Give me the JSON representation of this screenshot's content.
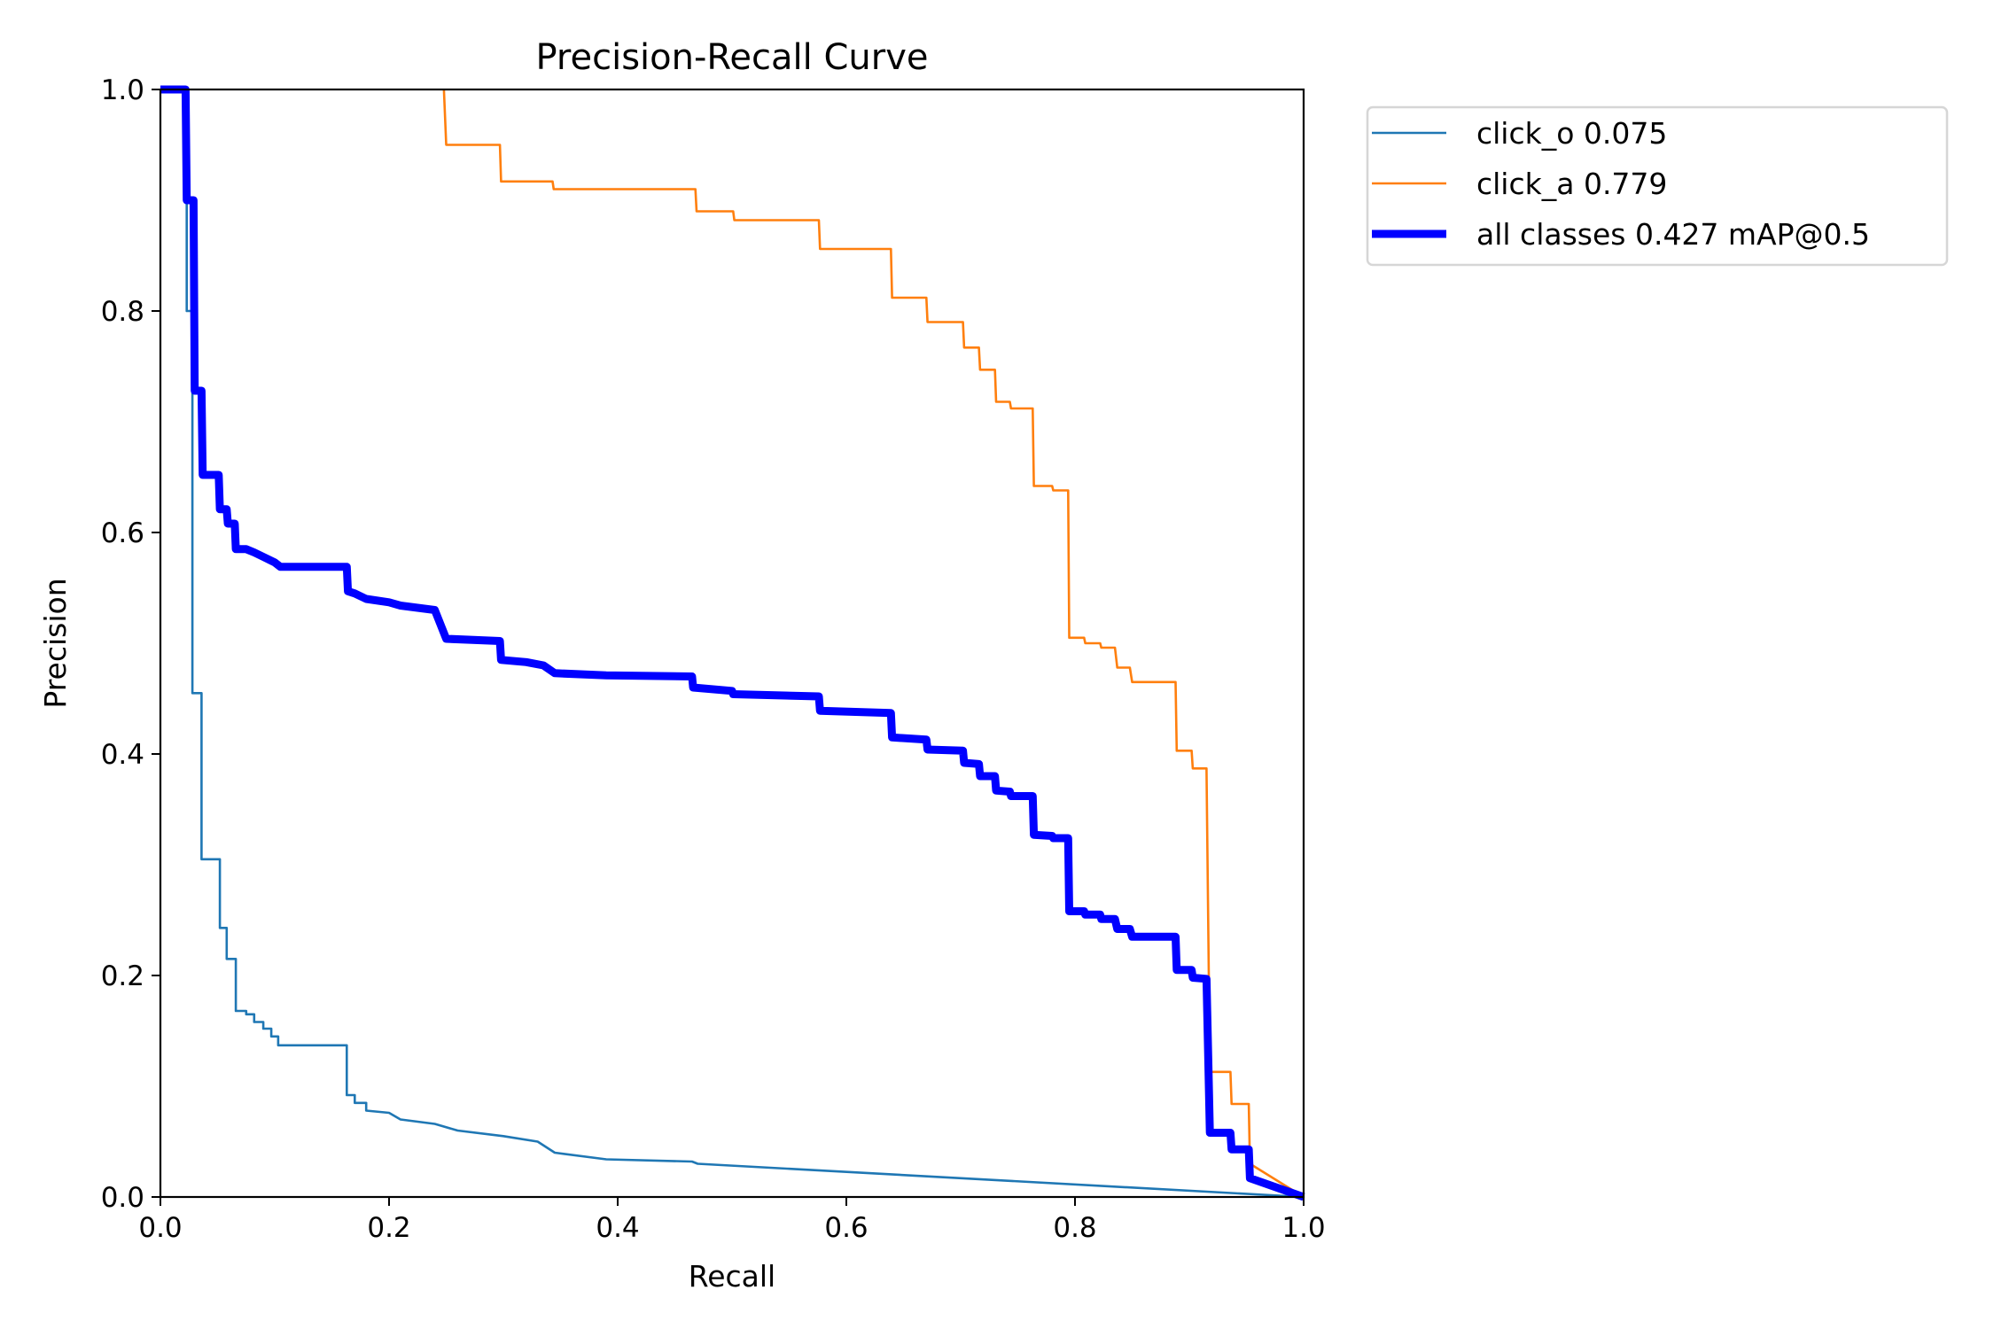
{
  "chart_data": {
    "type": "line",
    "title": "Precision-Recall Curve",
    "xlabel": "Recall",
    "ylabel": "Precision",
    "xlim": [
      0,
      1
    ],
    "ylim": [
      0,
      1
    ],
    "xticks": [
      "0.0",
      "0.2",
      "0.4",
      "0.6",
      "0.8",
      "1.0"
    ],
    "yticks": [
      "0.0",
      "0.2",
      "0.4",
      "0.6",
      "0.8",
      "1.0"
    ],
    "grid": false,
    "legend_position": "outside-top-right",
    "series": [
      {
        "name": "click_o 0.075",
        "color": "#1f77b4",
        "width": "thin",
        "points": [
          [
            0,
            1.0
          ],
          [
            0.023,
            1.0
          ],
          [
            0.023,
            0.8
          ],
          [
            0.028,
            0.8
          ],
          [
            0.028,
            0.455
          ],
          [
            0.036,
            0.455
          ],
          [
            0.036,
            0.305
          ],
          [
            0.052,
            0.305
          ],
          [
            0.052,
            0.243
          ],
          [
            0.058,
            0.243
          ],
          [
            0.058,
            0.215
          ],
          [
            0.066,
            0.215
          ],
          [
            0.066,
            0.168
          ],
          [
            0.075,
            0.168
          ],
          [
            0.075,
            0.165
          ],
          [
            0.082,
            0.165
          ],
          [
            0.082,
            0.158
          ],
          [
            0.09,
            0.158
          ],
          [
            0.09,
            0.152
          ],
          [
            0.097,
            0.152
          ],
          [
            0.097,
            0.145
          ],
          [
            0.103,
            0.145
          ],
          [
            0.103,
            0.137
          ],
          [
            0.163,
            0.137
          ],
          [
            0.163,
            0.092
          ],
          [
            0.17,
            0.092
          ],
          [
            0.17,
            0.085
          ],
          [
            0.18,
            0.085
          ],
          [
            0.18,
            0.078
          ],
          [
            0.2,
            0.076
          ],
          [
            0.21,
            0.07
          ],
          [
            0.24,
            0.066
          ],
          [
            0.26,
            0.06
          ],
          [
            0.3,
            0.055
          ],
          [
            0.33,
            0.05
          ],
          [
            0.345,
            0.04
          ],
          [
            0.39,
            0.034
          ],
          [
            0.465,
            0.032
          ],
          [
            0.47,
            0.03
          ],
          [
            1.0,
            0.0
          ]
        ]
      },
      {
        "name": "click_a 0.779",
        "color": "#ff7f0e",
        "width": "thin",
        "points": [
          [
            0.248,
            1.0
          ],
          [
            0.25,
            0.95
          ],
          [
            0.297,
            0.95
          ],
          [
            0.298,
            0.917
          ],
          [
            0.343,
            0.917
          ],
          [
            0.344,
            0.91
          ],
          [
            0.468,
            0.91
          ],
          [
            0.469,
            0.89
          ],
          [
            0.501,
            0.89
          ],
          [
            0.502,
            0.882
          ],
          [
            0.576,
            0.882
          ],
          [
            0.577,
            0.856
          ],
          [
            0.639,
            0.856
          ],
          [
            0.64,
            0.812
          ],
          [
            0.67,
            0.812
          ],
          [
            0.671,
            0.79
          ],
          [
            0.702,
            0.79
          ],
          [
            0.703,
            0.767
          ],
          [
            0.716,
            0.767
          ],
          [
            0.717,
            0.747
          ],
          [
            0.73,
            0.747
          ],
          [
            0.731,
            0.718
          ],
          [
            0.743,
            0.718
          ],
          [
            0.744,
            0.712
          ],
          [
            0.763,
            0.712
          ],
          [
            0.764,
            0.642
          ],
          [
            0.78,
            0.642
          ],
          [
            0.781,
            0.638
          ],
          [
            0.794,
            0.638
          ],
          [
            0.795,
            0.505
          ],
          [
            0.808,
            0.505
          ],
          [
            0.809,
            0.5
          ],
          [
            0.822,
            0.5
          ],
          [
            0.823,
            0.496
          ],
          [
            0.835,
            0.496
          ],
          [
            0.837,
            0.478
          ],
          [
            0.848,
            0.478
          ],
          [
            0.85,
            0.465
          ],
          [
            0.888,
            0.465
          ],
          [
            0.889,
            0.403
          ],
          [
            0.902,
            0.403
          ],
          [
            0.903,
            0.387
          ],
          [
            0.915,
            0.387
          ],
          [
            0.918,
            0.113
          ],
          [
            0.936,
            0.113
          ],
          [
            0.937,
            0.084
          ],
          [
            0.952,
            0.084
          ],
          [
            0.953,
            0.03
          ],
          [
            1.0,
            0.0
          ]
        ]
      },
      {
        "name": "all classes 0.427 mAP@0.5",
        "color": "#0000ff",
        "width": "thick",
        "points": [
          [
            0,
            1.0
          ],
          [
            0.022,
            1.0
          ],
          [
            0.023,
            0.9
          ],
          [
            0.029,
            0.9
          ],
          [
            0.03,
            0.728
          ],
          [
            0.036,
            0.728
          ],
          [
            0.037,
            0.652
          ],
          [
            0.051,
            0.652
          ],
          [
            0.052,
            0.621
          ],
          [
            0.058,
            0.621
          ],
          [
            0.059,
            0.608
          ],
          [
            0.065,
            0.608
          ],
          [
            0.066,
            0.585
          ],
          [
            0.075,
            0.585
          ],
          [
            0.082,
            0.582
          ],
          [
            0.09,
            0.578
          ],
          [
            0.1,
            0.573
          ],
          [
            0.105,
            0.569
          ],
          [
            0.163,
            0.569
          ],
          [
            0.164,
            0.547
          ],
          [
            0.17,
            0.545
          ],
          [
            0.18,
            0.54
          ],
          [
            0.2,
            0.537
          ],
          [
            0.21,
            0.534
          ],
          [
            0.24,
            0.53
          ],
          [
            0.25,
            0.504
          ],
          [
            0.297,
            0.502
          ],
          [
            0.298,
            0.485
          ],
          [
            0.32,
            0.483
          ],
          [
            0.335,
            0.48
          ],
          [
            0.345,
            0.473
          ],
          [
            0.39,
            0.471
          ],
          [
            0.465,
            0.47
          ],
          [
            0.466,
            0.46
          ],
          [
            0.5,
            0.457
          ],
          [
            0.501,
            0.454
          ],
          [
            0.576,
            0.452
          ],
          [
            0.577,
            0.439
          ],
          [
            0.639,
            0.437
          ],
          [
            0.64,
            0.415
          ],
          [
            0.67,
            0.413
          ],
          [
            0.671,
            0.404
          ],
          [
            0.702,
            0.403
          ],
          [
            0.703,
            0.392
          ],
          [
            0.716,
            0.391
          ],
          [
            0.717,
            0.38
          ],
          [
            0.73,
            0.38
          ],
          [
            0.731,
            0.367
          ],
          [
            0.743,
            0.366
          ],
          [
            0.744,
            0.362
          ],
          [
            0.763,
            0.362
          ],
          [
            0.764,
            0.327
          ],
          [
            0.78,
            0.326
          ],
          [
            0.781,
            0.324
          ],
          [
            0.794,
            0.324
          ],
          [
            0.795,
            0.258
          ],
          [
            0.808,
            0.258
          ],
          [
            0.809,
            0.255
          ],
          [
            0.822,
            0.255
          ],
          [
            0.823,
            0.251
          ],
          [
            0.835,
            0.251
          ],
          [
            0.837,
            0.242
          ],
          [
            0.848,
            0.242
          ],
          [
            0.85,
            0.235
          ],
          [
            0.888,
            0.235
          ],
          [
            0.889,
            0.205
          ],
          [
            0.902,
            0.205
          ],
          [
            0.903,
            0.198
          ],
          [
            0.915,
            0.197
          ],
          [
            0.918,
            0.058
          ],
          [
            0.936,
            0.058
          ],
          [
            0.937,
            0.043
          ],
          [
            0.952,
            0.043
          ],
          [
            0.953,
            0.017
          ],
          [
            1.0,
            0.0
          ]
        ]
      }
    ]
  }
}
